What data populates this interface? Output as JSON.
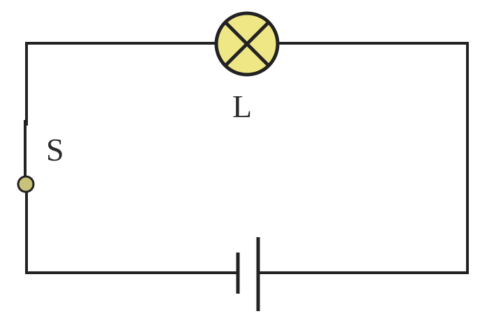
{
  "labels": {
    "lamp": "L",
    "switch": "S"
  },
  "colors": {
    "wire": "#222222",
    "lamp_fill": "#efe686",
    "terminal_fill": "#c9c27a",
    "background": "#ffffff"
  },
  "components": [
    {
      "type": "lamp",
      "label": "L"
    },
    {
      "type": "switch",
      "label": "S",
      "state": "open"
    },
    {
      "type": "battery",
      "cells": 1
    }
  ]
}
